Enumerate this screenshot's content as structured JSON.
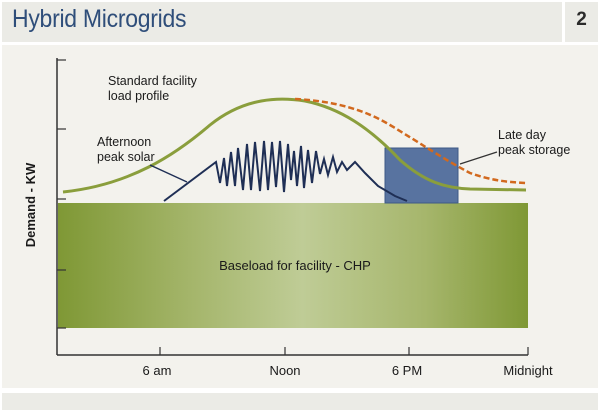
{
  "header": {
    "title": "Hybrid Microgrids",
    "page_number": "2"
  },
  "diagram": {
    "y_axis_label": "Demand - KW",
    "x_ticks": [
      "6 am",
      "Noon",
      "6 PM",
      "Midnight"
    ],
    "annotations": {
      "standard_profile": [
        "Standard facility",
        "load profile"
      ],
      "afternoon_solar": [
        "Afternoon",
        "peak solar"
      ],
      "late_day_storage": [
        "Late day",
        "peak storage"
      ]
    },
    "baseload_label": "Baseload for facility - CHP",
    "colors": {
      "title": "#2f4e7a",
      "load_curve": "#8a9e3c",
      "storage_curve": "#d2691e",
      "solar_line": "#1f2f55",
      "storage_box": "#5873a0",
      "baseload_dark": "#7f9835",
      "baseload_light": "#bfcc96"
    }
  }
}
